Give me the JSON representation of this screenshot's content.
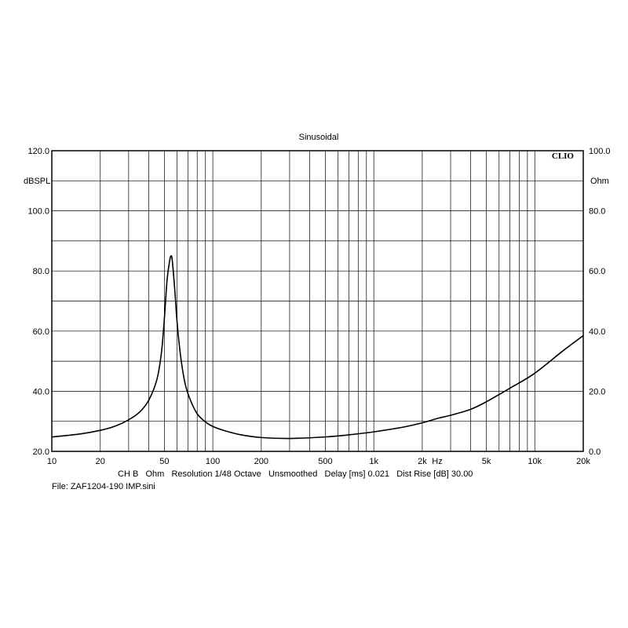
{
  "chart_data": {
    "type": "line",
    "title": "Sinusoidal",
    "brand": "CLIO",
    "x_scale": "log",
    "xlim": [
      10,
      20000
    ],
    "x_ticks": [
      {
        "value": 10,
        "label": "10"
      },
      {
        "value": 20,
        "label": "20"
      },
      {
        "value": 50,
        "label": "50"
      },
      {
        "value": 100,
        "label": "100"
      },
      {
        "value": 200,
        "label": "200"
      },
      {
        "value": 500,
        "label": "500"
      },
      {
        "value": 1000,
        "label": "1k"
      },
      {
        "value": 2000,
        "label": "2k"
      },
      {
        "value": 5000,
        "label": "5k"
      },
      {
        "value": 10000,
        "label": "10k"
      },
      {
        "value": 20000,
        "label": "20k"
      }
    ],
    "x_unit": "Hz",
    "left_axis": {
      "unit": "dBSPL",
      "lim": [
        20,
        120
      ],
      "tick_labels": [
        "20.0",
        "40.0",
        "60.0",
        "80.0",
        "100.0",
        "120.0"
      ]
    },
    "right_axis": {
      "unit": "Ohm",
      "lim": [
        0,
        100
      ],
      "tick_labels": [
        "0.0",
        "20.0",
        "40.0",
        "60.0",
        "80.0",
        "100.0"
      ]
    },
    "grid": true,
    "series": [
      {
        "axis": "right",
        "color": "#000000",
        "x": [
          10,
          15,
          20,
          25,
          30,
          35,
          40,
          45,
          48,
          50,
          52,
          54,
          55,
          56,
          58,
          60,
          63,
          67,
          72,
          80,
          90,
          100,
          120,
          150,
          200,
          300,
          500,
          700,
          1000,
          1500,
          2000,
          2500,
          3000,
          4000,
          5000,
          7000,
          10000,
          15000,
          20000
        ],
        "y": [
          4.8,
          5.8,
          7.0,
          8.5,
          10.5,
          13.0,
          17.0,
          24.0,
          33.0,
          44.0,
          57.0,
          63.5,
          65.0,
          63.5,
          54.0,
          43.0,
          32.0,
          23.0,
          17.5,
          12.5,
          9.8,
          8.3,
          6.8,
          5.5,
          4.6,
          4.3,
          4.8,
          5.5,
          6.5,
          8.0,
          9.5,
          11.0,
          12.0,
          14.0,
          16.5,
          21.0,
          26.0,
          33.5,
          38.5
        ]
      }
    ]
  },
  "footer": {
    "line1": "CH B   Ohm   Resolution 1/48 Octave   Unsmoothed   Delay [ms] 0.021   Dist Rise [dB] 30.00",
    "line2": "File: ZAF1204-190 IMP.sini"
  }
}
